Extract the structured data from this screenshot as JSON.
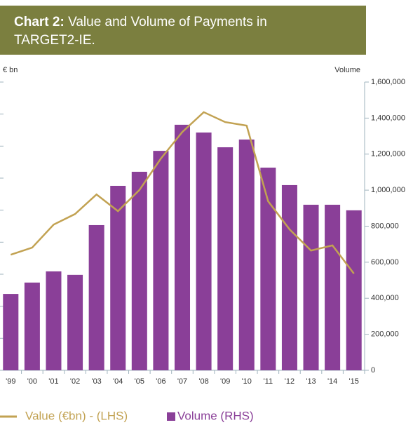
{
  "chart_data": {
    "type": "bar-line",
    "title_bold": "Chart 2:",
    "title": "Value and Volume of Payments in TARGET2-IE.",
    "ylabel": "€ bn",
    "y2label": "Volume",
    "categories": [
      "'99",
      "'00",
      "'01",
      "'02",
      "'03",
      "'04",
      "'05",
      "'06",
      "'07",
      "'08",
      "'09",
      "'10",
      "'11",
      "'12",
      "'13",
      "'14",
      "'15"
    ],
    "ylim": [
      0,
      9
    ],
    "yticks": [
      0,
      1,
      2,
      3,
      4,
      5,
      6,
      7,
      8,
      9
    ],
    "y2lim": [
      0,
      1600000
    ],
    "y2ticks": [
      0,
      {
        "value": 200000,
        "label": "200,000"
      },
      {
        "value": 400000,
        "label": "400,000"
      },
      {
        "value": 600000,
        "label": "600,000"
      },
      {
        "value": 800000,
        "label": "800,000"
      },
      {
        "value": 1000000,
        "label": "1,000,000"
      },
      {
        "value": 1200000,
        "label": "1,200,000"
      },
      {
        "value": 1400000,
        "label": "1,400,000"
      },
      {
        "value": 1600000,
        "label": "1,600,000"
      }
    ],
    "series": [
      {
        "name": "Value (€bn) - (LHS)",
        "type": "line",
        "axis": "y",
        "color": "#c2a252",
        "values": [
          3.61,
          3.83,
          4.55,
          4.88,
          5.49,
          4.97,
          5.63,
          6.61,
          7.44,
          8.06,
          7.75,
          7.64,
          5.28,
          4.4,
          3.74,
          3.9,
          3.02
        ]
      },
      {
        "name": "Volume (RHS)",
        "type": "bar",
        "axis": "y2",
        "color": "#8a3f98",
        "values": [
          424000,
          487000,
          549000,
          530000,
          806000,
          1024000,
          1102000,
          1218000,
          1363000,
          1320000,
          1238000,
          1281000,
          1125000,
          1028000,
          919000,
          919000,
          888000
        ]
      }
    ]
  }
}
